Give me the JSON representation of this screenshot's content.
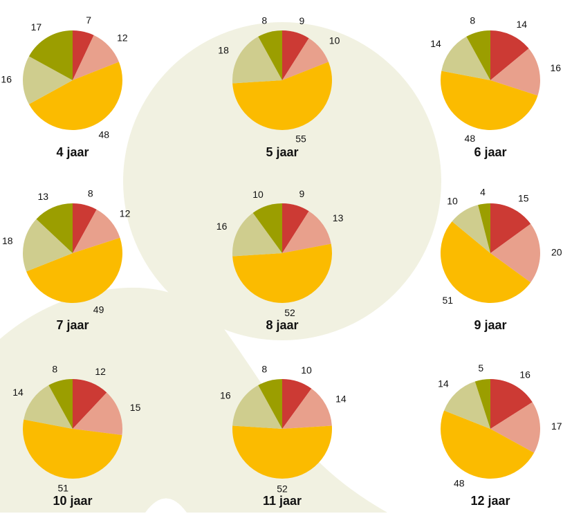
{
  "chart_data": [
    {
      "type": "pie",
      "title": "4 jaar",
      "values": [
        7,
        12,
        48,
        16,
        17
      ],
      "colors": [
        "#cc3a34",
        "#e8a08c",
        "#fbbb00",
        "#cfcd8e",
        "#9b9e00"
      ]
    },
    {
      "type": "pie",
      "title": "5 jaar",
      "values": [
        9,
        10,
        55,
        18,
        8
      ],
      "colors": [
        "#cc3a34",
        "#e8a08c",
        "#fbbb00",
        "#cfcd8e",
        "#9b9e00"
      ]
    },
    {
      "type": "pie",
      "title": "6 jaar",
      "values": [
        14,
        16,
        48,
        14,
        8
      ],
      "colors": [
        "#cc3a34",
        "#e8a08c",
        "#fbbb00",
        "#cfcd8e",
        "#9b9e00"
      ]
    },
    {
      "type": "pie",
      "title": "7 jaar",
      "values": [
        8,
        12,
        49,
        18,
        13
      ],
      "colors": [
        "#cc3a34",
        "#e8a08c",
        "#fbbb00",
        "#cfcd8e",
        "#9b9e00"
      ]
    },
    {
      "type": "pie",
      "title": "8 jaar",
      "values": [
        9,
        13,
        52,
        16,
        10
      ],
      "colors": [
        "#cc3a34",
        "#e8a08c",
        "#fbbb00",
        "#cfcd8e",
        "#9b9e00"
      ]
    },
    {
      "type": "pie",
      "title": "9 jaar",
      "values": [
        15,
        20,
        51,
        10,
        4
      ],
      "colors": [
        "#cc3a34",
        "#e8a08c",
        "#fbbb00",
        "#cfcd8e",
        "#9b9e00"
      ]
    },
    {
      "type": "pie",
      "title": "10 jaar",
      "values": [
        12,
        15,
        51,
        14,
        8
      ],
      "colors": [
        "#cc3a34",
        "#e8a08c",
        "#fbbb00",
        "#cfcd8e",
        "#9b9e00"
      ]
    },
    {
      "type": "pie",
      "title": "11 jaar",
      "values": [
        10,
        14,
        52,
        16,
        8
      ],
      "colors": [
        "#cc3a34",
        "#e8a08c",
        "#fbbb00",
        "#cfcd8e",
        "#9b9e00"
      ]
    },
    {
      "type": "pie",
      "title": "12 jaar",
      "values": [
        16,
        17,
        48,
        14,
        5
      ],
      "colors": [
        "#cc3a34",
        "#e8a08c",
        "#fbbb00",
        "#cfcd8e",
        "#9b9e00"
      ]
    }
  ]
}
